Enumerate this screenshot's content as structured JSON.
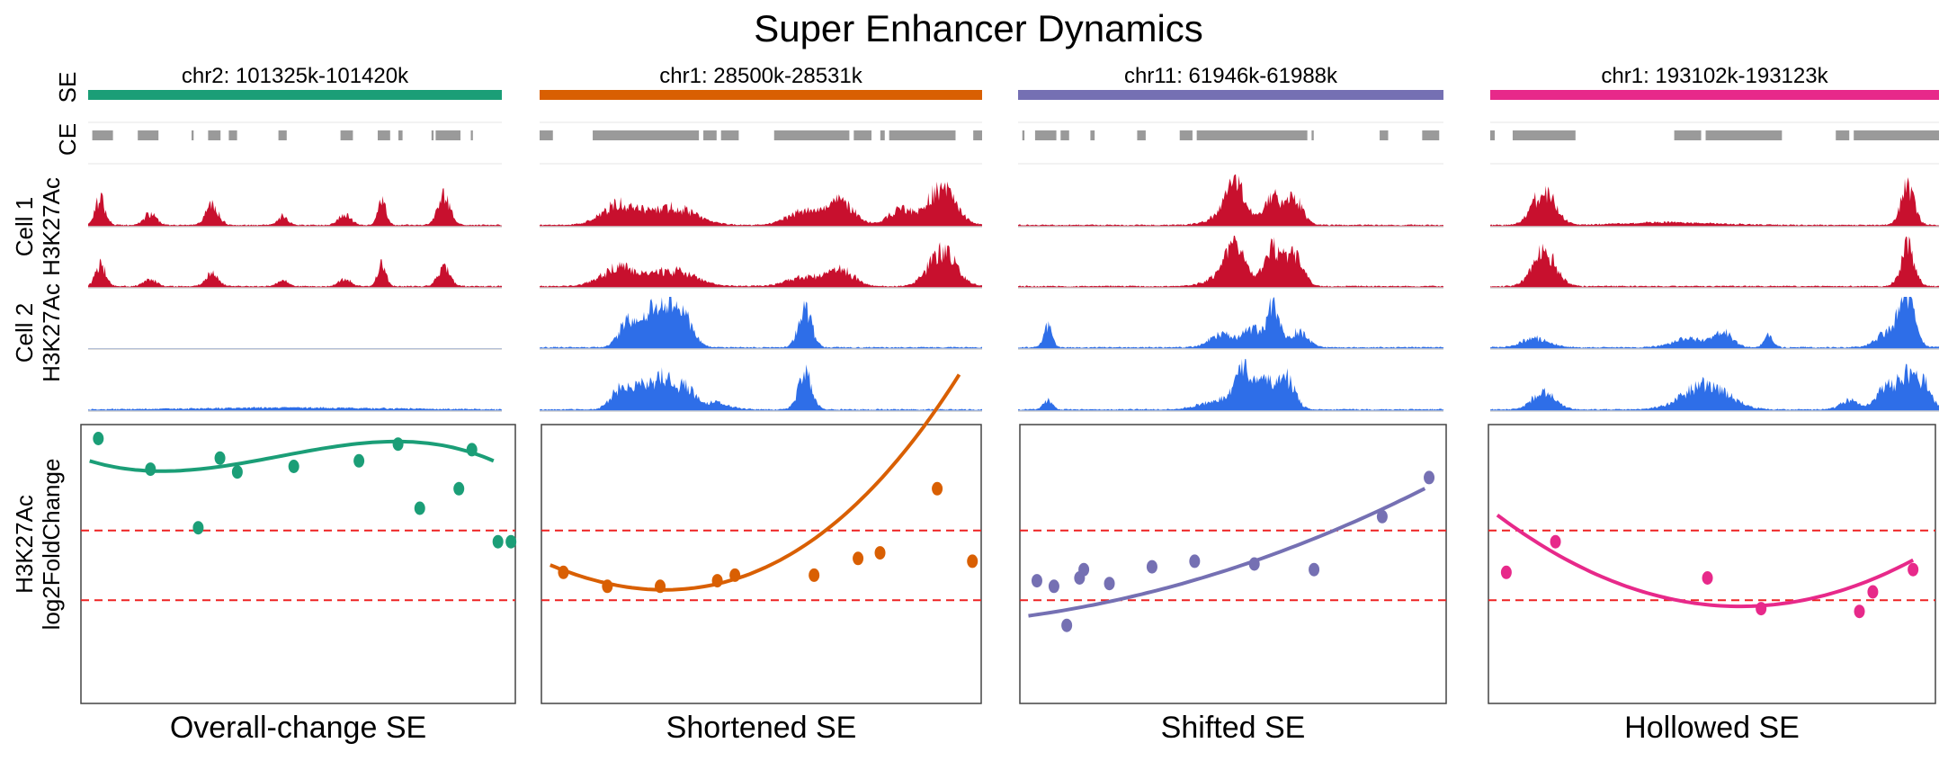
{
  "title": "Super Enhancer Dynamics",
  "row_labels": {
    "se": "SE",
    "ce": "CE",
    "cell1": [
      "Cell 1",
      "H3K27Ac"
    ],
    "cell2": [
      "Cell 2",
      "H3K27Ac"
    ],
    "fc": [
      "H3K27Ac",
      "log2FoldChange"
    ]
  },
  "colors": {
    "cell1_signal": "#c8102e",
    "cell2_signal": "#2e6ee8",
    "ce_blocks": "#9a9a9a",
    "threshold_line": "#ee2222"
  },
  "chart_data": [
    {
      "type": "scatter",
      "panel": "Overall-change SE",
      "region": "chr2: 101325k-101420k",
      "color": "#1b9e77",
      "thresholds": [
        0.62,
        0.37
      ],
      "ylim": [
        0,
        1
      ],
      "ce_blocks": [
        [
          0.01,
          0.06
        ],
        [
          0.12,
          0.17
        ],
        [
          0.25,
          0.255
        ],
        [
          0.29,
          0.32
        ],
        [
          0.34,
          0.36
        ],
        [
          0.46,
          0.48
        ],
        [
          0.61,
          0.64
        ],
        [
          0.7,
          0.73
        ],
        [
          0.75,
          0.76
        ],
        [
          0.83,
          0.835
        ],
        [
          0.84,
          0.9
        ],
        [
          0.925,
          0.93
        ]
      ],
      "cell1_peaks": [
        [
          0.03,
          0.6,
          0.012
        ],
        [
          0.15,
          0.25,
          0.015
        ],
        [
          0.3,
          0.45,
          0.015
        ],
        [
          0.47,
          0.2,
          0.012
        ],
        [
          0.62,
          0.22,
          0.015
        ],
        [
          0.71,
          0.55,
          0.01
        ],
        [
          0.86,
          0.65,
          0.015
        ]
      ],
      "cell1b_peaks": [
        [
          0.03,
          0.5,
          0.012
        ],
        [
          0.15,
          0.15,
          0.015
        ],
        [
          0.3,
          0.3,
          0.015
        ],
        [
          0.47,
          0.15,
          0.012
        ],
        [
          0.62,
          0.15,
          0.015
        ],
        [
          0.71,
          0.5,
          0.01
        ],
        [
          0.86,
          0.4,
          0.015
        ]
      ],
      "cell2_peaks": [],
      "cell2b_peaks": [
        [
          0.5,
          0.04,
          0.2
        ]
      ],
      "points_x": [
        0.04,
        0.16,
        0.27,
        0.32,
        0.36,
        0.49,
        0.64,
        0.73,
        0.78,
        0.87,
        0.9,
        0.96,
        0.99
      ],
      "points_y": [
        0.95,
        0.84,
        0.63,
        0.88,
        0.83,
        0.85,
        0.87,
        0.93,
        0.7,
        0.77,
        0.91,
        0.58,
        0.58
      ],
      "curve": [
        0.88,
        -0.55,
        1.85,
        -1.35
      ]
    },
    {
      "type": "scatter",
      "panel": "Shortened SE",
      "region": "chr1: 28500k-28531k",
      "color": "#d95f02",
      "thresholds": [
        0.62,
        0.37
      ],
      "ylim": [
        0,
        1
      ],
      "ce_blocks": [
        [
          0.0,
          0.03
        ],
        [
          0.12,
          0.36
        ],
        [
          0.37,
          0.4
        ],
        [
          0.41,
          0.45
        ],
        [
          0.53,
          0.7
        ],
        [
          0.71,
          0.75
        ],
        [
          0.77,
          0.78
        ],
        [
          0.79,
          0.94
        ],
        [
          0.98,
          1.0
        ]
      ],
      "cell1_peaks": [
        [
          0.18,
          0.45,
          0.04
        ],
        [
          0.3,
          0.4,
          0.05
        ],
        [
          0.6,
          0.3,
          0.04
        ],
        [
          0.68,
          0.5,
          0.03
        ],
        [
          0.82,
          0.35,
          0.03
        ],
        [
          0.91,
          0.85,
          0.03
        ]
      ],
      "cell1b_peaks": [
        [
          0.18,
          0.4,
          0.04
        ],
        [
          0.3,
          0.35,
          0.05
        ],
        [
          0.6,
          0.2,
          0.04
        ],
        [
          0.68,
          0.35,
          0.03
        ],
        [
          0.91,
          0.8,
          0.03
        ]
      ],
      "cell2_peaks": [
        [
          0.2,
          0.6,
          0.02
        ],
        [
          0.25,
          0.75,
          0.02
        ],
        [
          0.29,
          0.8,
          0.02
        ],
        [
          0.33,
          0.6,
          0.02
        ],
        [
          0.6,
          0.85,
          0.015
        ]
      ],
      "cell2b_peaks": [
        [
          0.18,
          0.45,
          0.02
        ],
        [
          0.23,
          0.6,
          0.02
        ],
        [
          0.28,
          0.7,
          0.02
        ],
        [
          0.33,
          0.5,
          0.02
        ],
        [
          0.4,
          0.15,
          0.03
        ],
        [
          0.6,
          0.8,
          0.015
        ]
      ],
      "points_x": [
        0.05,
        0.15,
        0.27,
        0.4,
        0.44,
        0.62,
        0.72,
        0.77,
        0.9,
        0.98
      ],
      "points_y": [
        0.47,
        0.42,
        0.42,
        0.44,
        0.46,
        0.46,
        0.52,
        0.54,
        0.77,
        0.51
      ],
      "curve": [
        0.51,
        -0.7,
        1.07,
        0.43
      ]
    },
    {
      "type": "scatter",
      "panel": "Shifted SE",
      "region": "chr11: 61946k-61988k",
      "color": "#7570b3",
      "thresholds": [
        0.62,
        0.37
      ],
      "ylim": [
        0,
        1
      ],
      "ce_blocks": [
        [
          0.01,
          0.015
        ],
        [
          0.04,
          0.09
        ],
        [
          0.1,
          0.12
        ],
        [
          0.17,
          0.18
        ],
        [
          0.28,
          0.3
        ],
        [
          0.38,
          0.41
        ],
        [
          0.42,
          0.68
        ],
        [
          0.69,
          0.695
        ],
        [
          0.85,
          0.87
        ],
        [
          0.95,
          0.99
        ]
      ],
      "cell1_peaks": [
        [
          0.5,
          0.3,
          0.04
        ],
        [
          0.51,
          0.75,
          0.02
        ],
        [
          0.6,
          0.6,
          0.02
        ],
        [
          0.65,
          0.55,
          0.02
        ]
      ],
      "cell1b_peaks": [
        [
          0.5,
          0.35,
          0.04
        ],
        [
          0.51,
          0.75,
          0.02
        ],
        [
          0.6,
          0.8,
          0.02
        ],
        [
          0.65,
          0.65,
          0.02
        ]
      ],
      "cell2_peaks": [
        [
          0.07,
          0.45,
          0.01
        ],
        [
          0.48,
          0.3,
          0.03
        ],
        [
          0.55,
          0.4,
          0.02
        ],
        [
          0.6,
          0.9,
          0.015
        ],
        [
          0.66,
          0.35,
          0.02
        ]
      ],
      "cell2b_peaks": [
        [
          0.07,
          0.2,
          0.01
        ],
        [
          0.47,
          0.2,
          0.04
        ],
        [
          0.53,
          0.8,
          0.02
        ],
        [
          0.58,
          0.6,
          0.02
        ],
        [
          0.63,
          0.7,
          0.02
        ]
      ],
      "points_x": [
        0.04,
        0.08,
        0.11,
        0.14,
        0.15,
        0.21,
        0.31,
        0.41,
        0.55,
        0.69,
        0.85,
        0.96
      ],
      "points_y": [
        0.44,
        0.42,
        0.28,
        0.45,
        0.48,
        0.43,
        0.49,
        0.51,
        0.5,
        0.48,
        0.67,
        0.81
      ],
      "curve": [
        0.31,
        0.2,
        0.3,
        0.0
      ]
    },
    {
      "type": "scatter",
      "panel": "Hollowed SE",
      "region": "chr1: 193102k-193123k",
      "color": "#e7298a",
      "thresholds": [
        0.62,
        0.37
      ],
      "ylim": [
        0,
        1
      ],
      "ce_blocks": [
        [
          0.0,
          0.01
        ],
        [
          0.05,
          0.19
        ],
        [
          0.41,
          0.47
        ],
        [
          0.48,
          0.65
        ],
        [
          0.77,
          0.8
        ],
        [
          0.81,
          1.0
        ]
      ],
      "cell1_peaks": [
        [
          0.12,
          0.75,
          0.025
        ],
        [
          0.4,
          0.06,
          0.1
        ],
        [
          0.93,
          0.85,
          0.015
        ]
      ],
      "cell1b_peaks": [
        [
          0.12,
          0.8,
          0.025
        ],
        [
          0.93,
          0.9,
          0.015
        ]
      ],
      "cell2_peaks": [
        [
          0.1,
          0.2,
          0.03
        ],
        [
          0.45,
          0.2,
          0.04
        ],
        [
          0.52,
          0.3,
          0.02
        ],
        [
          0.62,
          0.25,
          0.01
        ],
        [
          0.9,
          0.45,
          0.03
        ],
        [
          0.93,
          0.95,
          0.015
        ]
      ],
      "cell2b_peaks": [
        [
          0.12,
          0.4,
          0.025
        ],
        [
          0.48,
          0.55,
          0.05
        ],
        [
          0.8,
          0.2,
          0.02
        ],
        [
          0.88,
          0.5,
          0.02
        ],
        [
          0.93,
          0.8,
          0.02
        ],
        [
          0.97,
          0.5,
          0.015
        ]
      ],
      "points_x": [
        0.04,
        0.15,
        0.49,
        0.61,
        0.83,
        0.86,
        0.95
      ],
      "points_y": [
        0.47,
        0.58,
        0.45,
        0.34,
        0.33,
        0.4,
        0.48
      ],
      "curve": [
        0.7,
        -1.25,
        1.11,
        0.0
      ]
    }
  ]
}
